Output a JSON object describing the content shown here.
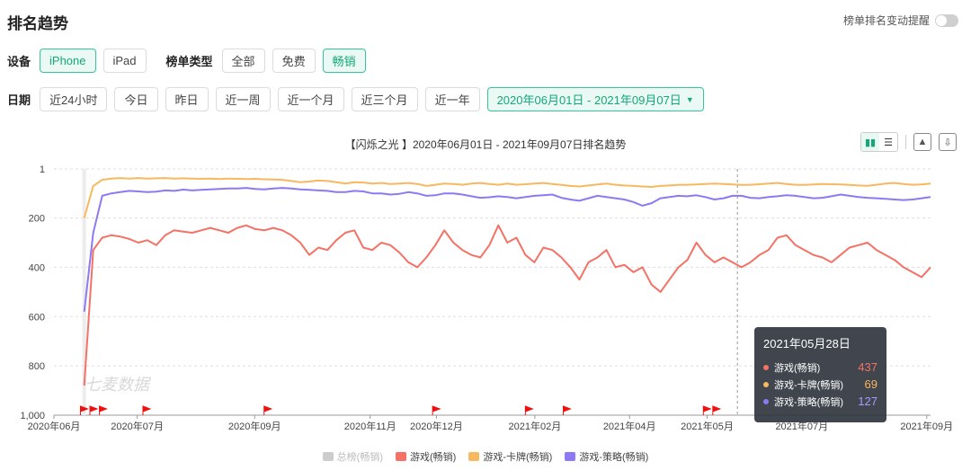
{
  "header": {
    "title": "排名趋势",
    "alert_label": "榜单排名变动提醒"
  },
  "device": {
    "label": "设备",
    "options": [
      "iPhone",
      "iPad"
    ],
    "active": "iPhone"
  },
  "chart_type": {
    "label": "榜单类型",
    "options": [
      "全部",
      "免费",
      "畅销"
    ],
    "active": "畅销"
  },
  "date": {
    "label": "日期",
    "options": [
      "近24小时",
      "今日",
      "昨日",
      "近一周",
      "近一个月",
      "近三个月",
      "近一年"
    ],
    "range": "2020年06月01日 - 2021年09月07日"
  },
  "chart_title": "【闪烁之光 】2020年06月01日 - 2021年09月07日排名趋势",
  "watermark": "七麦数据",
  "colors": {
    "accent": "#13a878",
    "red": "#f47265",
    "orange": "#f7b85e",
    "purple": "#8d79f2",
    "gray": "#cccccc"
  },
  "chart_data": {
    "type": "line",
    "y_reversed": true,
    "ylim": [
      1,
      1000
    ],
    "y_ticks": [
      "1",
      "200",
      "400",
      "600",
      "800",
      "1,000"
    ],
    "x_ticks": [
      "2020年06月",
      "2020年07月",
      "2020年09月",
      "2020年11月",
      "2020年12月",
      "2021年02月",
      "2021年04月",
      "2021年05月",
      "2021年07月",
      "2021年09月"
    ],
    "series": [
      {
        "name": "总榜(畅销)",
        "color": "#cccccc",
        "values": []
      },
      {
        "name": "游戏(畅销)",
        "color": "#f47265",
        "x_start": "2020-06-17",
        "values": [
          880,
          330,
          280,
          270,
          275,
          285,
          300,
          290,
          310,
          270,
          250,
          255,
          260,
          250,
          240,
          250,
          260,
          240,
          230,
          245,
          250,
          240,
          250,
          270,
          300,
          350,
          320,
          330,
          290,
          260,
          250,
          320,
          330,
          300,
          310,
          340,
          380,
          400,
          360,
          310,
          250,
          300,
          330,
          350,
          360,
          310,
          230,
          300,
          280,
          350,
          380,
          320,
          330,
          360,
          400,
          450,
          380,
          360,
          330,
          400,
          390,
          420,
          400,
          470,
          500,
          450,
          400,
          370,
          300,
          350,
          380,
          360,
          380,
          400,
          380,
          350,
          330,
          280,
          270,
          310,
          330,
          350,
          360,
          380,
          350,
          320,
          310,
          300,
          330,
          350,
          370,
          400,
          420,
          440,
          400
        ]
      },
      {
        "name": "游戏-卡牌(畅销)",
        "color": "#f7b85e",
        "x_start": "2020-06-17",
        "values": [
          200,
          70,
          45,
          40,
          38,
          40,
          38,
          40,
          39,
          38,
          40,
          39,
          40,
          41,
          40,
          42,
          40,
          41,
          42,
          41,
          43,
          44,
          45,
          50,
          55,
          52,
          48,
          50,
          55,
          60,
          55,
          56,
          60,
          58,
          62,
          60,
          58,
          62,
          70,
          65,
          60,
          62,
          65,
          60,
          58,
          62,
          65,
          60,
          65,
          63,
          60,
          58,
          62,
          66,
          70,
          72,
          68,
          64,
          60,
          65,
          68,
          70,
          72,
          74,
          70,
          68,
          66,
          65,
          64,
          62,
          60,
          62,
          64,
          66,
          65,
          63,
          60,
          58,
          62,
          65,
          66,
          64,
          62,
          63,
          64,
          66,
          68,
          69,
          65,
          60,
          58,
          62,
          65,
          64,
          60
        ]
      },
      {
        "name": "游戏-策略(畅销)",
        "color": "#8d79f2",
        "x_start": "2020-06-17",
        "values": [
          580,
          260,
          110,
          100,
          95,
          90,
          92,
          95,
          93,
          88,
          90,
          85,
          88,
          86,
          84,
          82,
          80,
          80,
          78,
          82,
          84,
          80,
          78,
          80,
          84,
          86,
          88,
          90,
          95,
          95,
          90,
          92,
          100,
          100,
          105,
          102,
          95,
          100,
          110,
          108,
          100,
          100,
          105,
          112,
          118,
          116,
          112,
          115,
          120,
          115,
          110,
          108,
          105,
          118,
          125,
          130,
          120,
          110,
          115,
          120,
          125,
          135,
          150,
          140,
          120,
          115,
          110,
          112,
          108,
          115,
          125,
          120,
          110,
          110,
          118,
          120,
          115,
          112,
          108,
          110,
          115,
          120,
          118,
          112,
          105,
          110,
          115,
          118,
          120,
          122,
          125,
          127,
          125,
          120,
          115
        ]
      }
    ],
    "tooltip": {
      "date": "2021年05月28日",
      "rows": [
        {
          "name": "游戏(畅销)",
          "value": "437",
          "color": "#f47265"
        },
        {
          "name": "游戏-卡牌(畅销)",
          "value": "69",
          "color": "#f7b85e"
        },
        {
          "name": "游戏-策略(畅销)",
          "value": "127",
          "color": "#8d79f2"
        }
      ]
    }
  }
}
